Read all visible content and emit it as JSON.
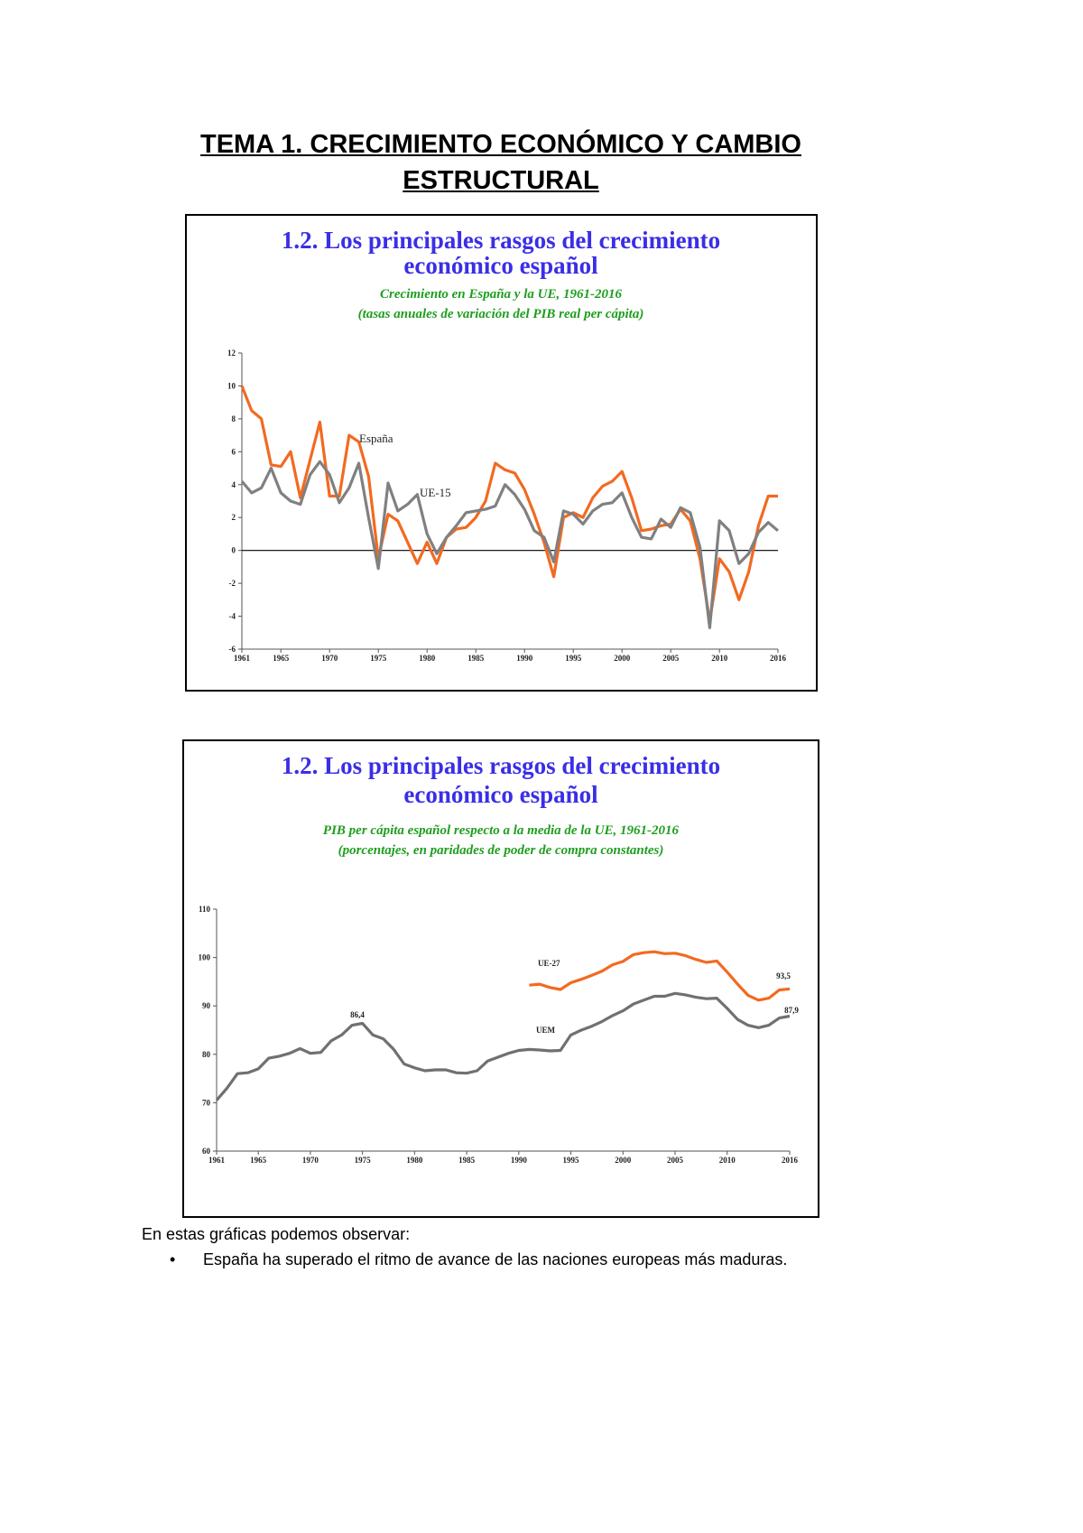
{
  "title": "TEMA 1. CRECIMIENTO ECONÓMICO Y CAMBIO ESTRUCTURAL",
  "chart_data": [
    {
      "type": "line",
      "title": [
        "1.2.  Los principales rasgos del crecimiento",
        "económico español"
      ],
      "subtitle": [
        "Crecimiento en España y la UE, 1961-2016",
        "(tasas anuales de variación del PIB real per cápita)"
      ],
      "x": [
        1961,
        1962,
        1963,
        1964,
        1965,
        1966,
        1967,
        1968,
        1969,
        1970,
        1971,
        1972,
        1973,
        1974,
        1975,
        1976,
        1977,
        1978,
        1979,
        1980,
        1981,
        1982,
        1983,
        1984,
        1985,
        1986,
        1987,
        1988,
        1989,
        1990,
        1991,
        1992,
        1993,
        1994,
        1995,
        1996,
        1997,
        1998,
        1999,
        2000,
        2001,
        2002,
        2003,
        2004,
        2005,
        2006,
        2007,
        2008,
        2009,
        2010,
        2011,
        2012,
        2013,
        2014,
        2015,
        2016
      ],
      "series": [
        {
          "name": "España",
          "color": "#f26a21",
          "values": [
            10.0,
            8.5,
            8.0,
            5.2,
            5.1,
            6.0,
            3.2,
            5.5,
            7.8,
            3.3,
            3.3,
            7.0,
            6.6,
            4.5,
            -0.5,
            2.2,
            1.8,
            0.5,
            -0.8,
            0.5,
            -0.8,
            0.8,
            1.3,
            1.4,
            2.0,
            3.0,
            5.3,
            4.9,
            4.7,
            3.7,
            2.2,
            0.5,
            -1.6,
            2.0,
            2.3,
            2.0,
            3.2,
            3.9,
            4.2,
            4.8,
            3.2,
            1.2,
            1.3,
            1.5,
            1.6,
            2.5,
            1.8,
            -0.5,
            -4.3,
            -0.5,
            -1.3,
            -3.0,
            -1.3,
            1.5,
            3.3,
            3.3
          ]
        },
        {
          "name": "UE-15",
          "color": "#808080",
          "values": [
            4.2,
            3.5,
            3.8,
            5.0,
            3.5,
            3.0,
            2.8,
            4.6,
            5.4,
            4.6,
            2.9,
            3.8,
            5.3,
            2.0,
            -1.1,
            4.1,
            2.4,
            2.8,
            3.4,
            1.0,
            -0.2,
            0.8,
            1.5,
            2.3,
            2.4,
            2.5,
            2.7,
            4.0,
            3.4,
            2.5,
            1.2,
            0.8,
            -0.7,
            2.4,
            2.2,
            1.6,
            2.4,
            2.8,
            2.9,
            3.5,
            2.0,
            0.8,
            0.7,
            1.9,
            1.4,
            2.6,
            2.3,
            0.2,
            -4.7,
            1.8,
            1.2,
            -0.8,
            -0.2,
            1.1,
            1.7,
            1.2
          ]
        }
      ],
      "xlim": [
        1961,
        2016
      ],
      "xticks": [
        1961,
        1965,
        1970,
        1975,
        1980,
        1985,
        1990,
        1995,
        2000,
        2005,
        2010,
        2016
      ],
      "ylim": [
        -6,
        12
      ],
      "yticks": [
        -6,
        -4,
        -2,
        0,
        2,
        4,
        6,
        8,
        10,
        12
      ],
      "zero_line": true
    },
    {
      "type": "line",
      "title": [
        "1.2.  Los principales rasgos del crecimiento",
        "económico español"
      ],
      "subtitle": [
        "PIB per cápita español respecto a la media de la UE, 1961-2016",
        "(porcentajes, en paridades de poder de compra constantes)"
      ],
      "x": [
        1961,
        1962,
        1963,
        1964,
        1965,
        1966,
        1967,
        1968,
        1969,
        1970,
        1971,
        1972,
        1973,
        1974,
        1975,
        1976,
        1977,
        1978,
        1979,
        1980,
        1981,
        1982,
        1983,
        1984,
        1985,
        1986,
        1987,
        1988,
        1989,
        1990,
        1991,
        1992,
        1993,
        1994,
        1995,
        1996,
        1997,
        1998,
        1999,
        2000,
        2001,
        2002,
        2003,
        2004,
        2005,
        2006,
        2007,
        2008,
        2009,
        2010,
        2011,
        2012,
        2013,
        2014,
        2015,
        2016
      ],
      "series": [
        {
          "name": "UE-27",
          "color": "#f26a21",
          "values": [
            null,
            null,
            null,
            null,
            null,
            null,
            null,
            null,
            null,
            null,
            null,
            null,
            null,
            null,
            null,
            null,
            null,
            null,
            null,
            null,
            null,
            null,
            null,
            null,
            null,
            null,
            null,
            null,
            null,
            null,
            94.3,
            94.5,
            93.8,
            93.4,
            94.8,
            95.5,
            96.3,
            97.2,
            98.5,
            99.2,
            100.6,
            101.0,
            101.2,
            100.8,
            100.9,
            100.4,
            99.6,
            99.0,
            99.3,
            97.0,
            94.5,
            92.2,
            91.2,
            91.6,
            93.3,
            93.5
          ]
        },
        {
          "name": "UEM",
          "color": "#707070",
          "values": [
            70.5,
            73.0,
            76.0,
            76.2,
            77.0,
            79.2,
            79.6,
            80.2,
            81.2,
            80.2,
            80.4,
            82.8,
            84.0,
            86.0,
            86.4,
            84.0,
            83.2,
            81.0,
            78.0,
            77.2,
            76.6,
            76.8,
            76.8,
            76.2,
            76.1,
            76.6,
            78.6,
            79.4,
            80.2,
            80.8,
            81.0,
            80.9,
            80.7,
            80.8,
            84.0,
            85.0,
            85.8,
            86.8,
            88.0,
            89.0,
            90.4,
            91.2,
            92.0,
            92.0,
            92.6,
            92.3,
            91.8,
            91.5,
            91.6,
            89.5,
            87.2,
            86.0,
            85.5,
            86.0,
            87.5,
            87.9
          ]
        }
      ],
      "annotations": [
        "86,4",
        "93,5",
        "87,9"
      ],
      "xlim": [
        1961,
        2016
      ],
      "xticks": [
        1961,
        1965,
        1970,
        1975,
        1980,
        1985,
        1990,
        1995,
        2000,
        2005,
        2010,
        2016
      ],
      "ylim": [
        60,
        110
      ],
      "yticks": [
        60,
        70,
        80,
        90,
        100,
        110
      ]
    }
  ],
  "body": {
    "intro": "En estas gráficas podemos observar:",
    "bullets": [
      "España ha superado el ritmo de avance de las naciones europeas más maduras."
    ]
  }
}
